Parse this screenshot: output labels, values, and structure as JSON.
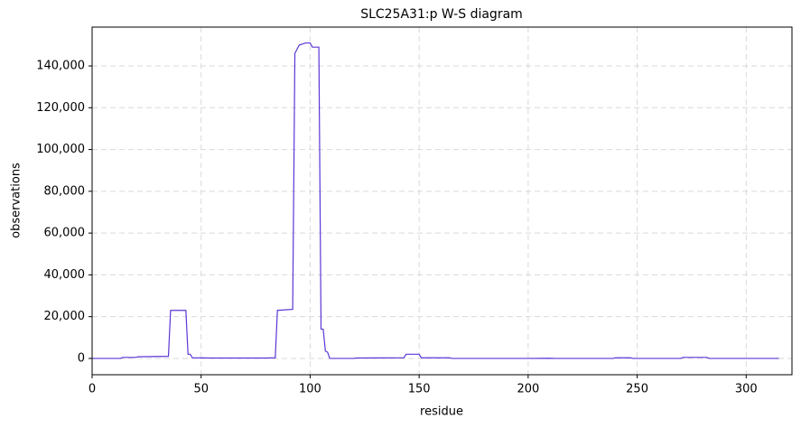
{
  "chart_data": {
    "type": "line",
    "title": "SLC25A31:p W-S diagram",
    "x_label": "residue",
    "y_label": "observations",
    "x": [
      0,
      13,
      14,
      20,
      21,
      35,
      36,
      43,
      44,
      45,
      46,
      55,
      80,
      84,
      85,
      92,
      93,
      95,
      98,
      100,
      101,
      104,
      105,
      106,
      107,
      108,
      109,
      120,
      121,
      143,
      144,
      150,
      151,
      164,
      165,
      200,
      210,
      212,
      239,
      240,
      247,
      248,
      270,
      271,
      282,
      283,
      315
    ],
    "values": [
      0,
      0,
      500,
      500,
      800,
      1000,
      23000,
      23000,
      2000,
      2000,
      300,
      200,
      200,
      300,
      23000,
      23500,
      146000,
      150000,
      151000,
      151000,
      149000,
      149000,
      14000,
      14000,
      3500,
      3000,
      0,
      0,
      200,
      300,
      2000,
      2000,
      300,
      300,
      0,
      0,
      100,
      0,
      0,
      300,
      300,
      0,
      0,
      500,
      500,
      0,
      0
    ],
    "color": "#5b36d6",
    "xlim": [
      0,
      321
    ],
    "xticks": [
      0,
      50,
      100,
      150,
      200,
      250,
      300
    ],
    "ylim": [
      -7800,
      158600
    ],
    "yticks": [
      0,
      {
        "value": 20000,
        "label": "20,000"
      },
      {
        "value": 40000,
        "label": "40,000"
      },
      {
        "value": 60000,
        "label": "60,000"
      },
      {
        "value": 80000,
        "label": "80,000"
      },
      {
        "value": 100000,
        "label": "100,000"
      },
      {
        "value": 120000,
        "label": "120,000"
      },
      {
        "value": 140000,
        "label": "140,000"
      }
    ],
    "grid": true
  }
}
